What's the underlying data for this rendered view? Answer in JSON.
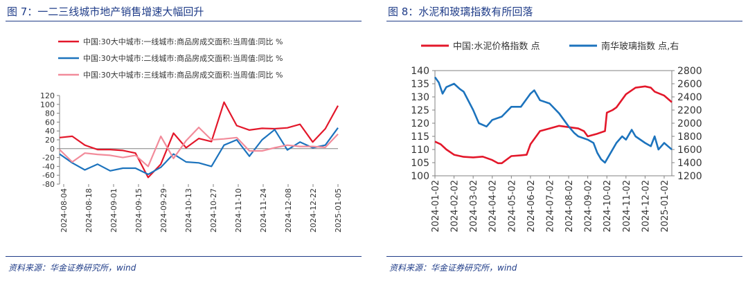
{
  "colors": {
    "red": "#e3172a",
    "blue": "#1c73bd",
    "pink": "#f28b9a",
    "title": "#1f3c88",
    "axis": "#808080"
  },
  "left": {
    "title": "图 7：一二三线城市地产销售增速大幅回升",
    "source": "资料来源：华金证券研究所，wind"
  },
  "right": {
    "title": "图 8：水泥和玻璃指数有所回落",
    "source": "资料来源：华金证券研究所，wind"
  },
  "chart_data": [
    {
      "type": "line",
      "title": "图 7：一二三线城市地产销售增速大幅回升",
      "ylim": [
        -80,
        120
      ],
      "yticks": [
        120,
        100,
        80,
        60,
        40,
        20,
        0,
        -20,
        -40,
        -60,
        -80
      ],
      "xlabels": [
        "2024-08-04",
        "2024-08-18",
        "2024-09-01",
        "2024-09-15",
        "2024-09-29",
        "2024-10-13",
        "2024-10-27",
        "2024-11-10",
        "2024-11-24",
        "2024-12-08",
        "2024-12-22",
        "2025-01-05"
      ],
      "series": [
        {
          "name": "中国:30大中城市:一线城市:商品房成交面积:当周值:同比 %",
          "color": "#e3172a",
          "values": [
            25,
            28,
            8,
            -2,
            -2,
            -4,
            -10,
            -65,
            -35,
            35,
            2,
            23,
            16,
            105,
            52,
            42,
            46,
            45,
            47,
            55,
            15,
            45,
            97
          ]
        },
        {
          "name": "中国:30大中城市:二线城市:商品房成交面积:当周值:同比 %",
          "color": "#1c73bd",
          "values": [
            -12,
            -32,
            -48,
            -35,
            -50,
            -44,
            -44,
            -58,
            -42,
            -12,
            -30,
            -32,
            -40,
            8,
            20,
            -17,
            20,
            43,
            -3,
            15,
            2,
            8,
            47
          ]
        },
        {
          "name": "中国:30大中城市:三线城市:商品房成交面积:当周值:同比 %",
          "color": "#f28b9a",
          "values": [
            -2,
            -30,
            -10,
            -13,
            -15,
            -20,
            -15,
            -40,
            28,
            -22,
            18,
            48,
            20,
            22,
            25,
            -5,
            -5,
            2,
            8,
            5,
            5,
            3,
            33
          ]
        }
      ]
    },
    {
      "type": "line",
      "title": "图 8：水泥和玻璃指数有所回落",
      "xlabels": [
        "2024-01-02",
        "2024-02-02",
        "2024-03-02",
        "2024-04-02",
        "2024-05-02",
        "2024-06-02",
        "2024-07-02",
        "2024-08-02",
        "2024-09-02",
        "2024-10-02",
        "2024-11-02",
        "2024-12-02",
        "2025-01-02"
      ],
      "left_axis": {
        "ylim": [
          100,
          140
        ],
        "yticks": [
          140,
          135,
          130,
          125,
          120,
          115,
          110,
          105,
          100
        ]
      },
      "right_axis": {
        "ylim": [
          1200,
          2800
        ],
        "yticks": [
          2800,
          2600,
          2400,
          2200,
          2000,
          1800,
          1600,
          1400,
          1200
        ]
      },
      "series": [
        {
          "name": "中国:水泥价格指数  点",
          "axis": "left",
          "color": "#e3172a",
          "x": [
            0,
            0.3,
            0.6,
            1,
            1.5,
            2,
            2.5,
            3,
            3.3,
            3.5,
            4,
            4.5,
            4.8,
            5,
            5.5,
            6,
            6.5,
            7,
            7.5,
            7.8,
            8,
            8.5,
            8.9,
            9,
            9.3,
            9.5,
            10,
            10.5,
            11,
            11.3,
            11.5,
            12,
            12.4
          ],
          "values": [
            113,
            112,
            110,
            108,
            107.2,
            107,
            107.3,
            106,
            104.8,
            104.8,
            107.5,
            107.8,
            108,
            112,
            117,
            118,
            119,
            118.5,
            118,
            117,
            115,
            116,
            117,
            124,
            125,
            126,
            131,
            133.5,
            134,
            133.5,
            132,
            130.5,
            128
          ]
        },
        {
          "name": "南华玻璃指数  点,右",
          "axis": "right",
          "color": "#1c73bd",
          "x": [
            0,
            0.2,
            0.4,
            0.6,
            1,
            1.3,
            1.5,
            2,
            2.3,
            2.7,
            3,
            3.5,
            4,
            4.5,
            5,
            5.2,
            5.5,
            6,
            6.5,
            7,
            7.3,
            7.5,
            8,
            8.3,
            8.5,
            8.7,
            8.9,
            9,
            9.5,
            9.8,
            10,
            10.3,
            10.5,
            11,
            11.3,
            11.5,
            11.7,
            12,
            12.2,
            12.4
          ],
          "values": [
            2700,
            2620,
            2450,
            2550,
            2600,
            2520,
            2480,
            2200,
            2000,
            1950,
            2050,
            2100,
            2250,
            2250,
            2450,
            2500,
            2350,
            2300,
            2150,
            1950,
            1850,
            1800,
            1750,
            1700,
            1550,
            1450,
            1400,
            1450,
            1700,
            1800,
            1750,
            1900,
            1800,
            1700,
            1650,
            1800,
            1600,
            1700,
            1650,
            1600
          ]
        }
      ]
    }
  ]
}
